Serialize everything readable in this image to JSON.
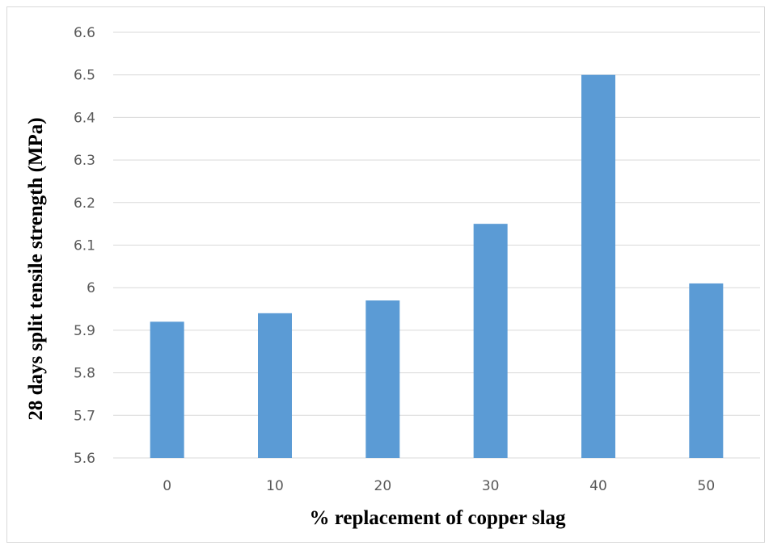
{
  "chart_data": {
    "type": "bar",
    "categories": [
      "0",
      "10",
      "20",
      "30",
      "40",
      "50"
    ],
    "values": [
      5.92,
      5.94,
      5.97,
      6.15,
      6.5,
      6.01
    ],
    "xlabel": "% replacement of copper slag",
    "ylabel": "28 days split tensile strength (MPa)",
    "ylim": [
      5.6,
      6.6
    ],
    "yticks": [
      "5.6",
      "5.7",
      "5.8",
      "5.9",
      "6",
      "6.1",
      "6.2",
      "6.3",
      "6.4",
      "6.5",
      "6.6"
    ],
    "grid": true,
    "bar_color": "#5b9bd5",
    "grid_color": "#d9d9d9"
  }
}
